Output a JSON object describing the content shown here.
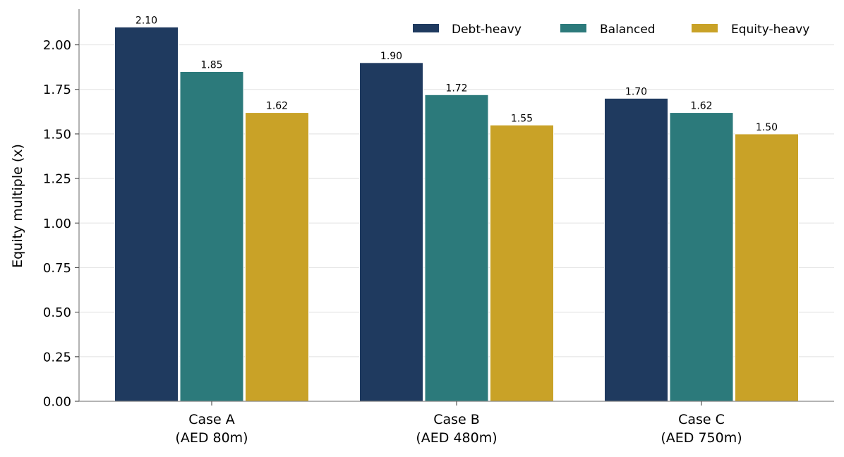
{
  "chart_data": {
    "type": "bar",
    "title": "",
    "xlabel": "",
    "ylabel": "Equity multiple (x)",
    "ylim": [
      0,
      2.2
    ],
    "yticks": [
      "0.00",
      "0.25",
      "0.50",
      "0.75",
      "1.00",
      "1.25",
      "1.50",
      "1.75",
      "2.00"
    ],
    "categories": [
      [
        "Case A",
        "(AED 80m)"
      ],
      [
        "Case B",
        "(AED 480m)"
      ],
      [
        "Case C",
        "(AED 750m)"
      ]
    ],
    "series": [
      {
        "name": "Debt-heavy",
        "color": "#1f3a5f",
        "values": [
          2.1,
          1.9,
          1.7
        ],
        "labels": [
          "2.10",
          "1.90",
          "1.70"
        ]
      },
      {
        "name": "Balanced",
        "color": "#2c7a7b",
        "values": [
          1.85,
          1.72,
          1.62
        ],
        "labels": [
          "1.85",
          "1.72",
          "1.62"
        ]
      },
      {
        "name": "Equity-heavy",
        "color": "#c9a227",
        "values": [
          1.62,
          1.55,
          1.5
        ],
        "labels": [
          "1.62",
          "1.55",
          "1.50"
        ]
      }
    ],
    "grid": "horizontal",
    "legend_position": "top-right"
  }
}
